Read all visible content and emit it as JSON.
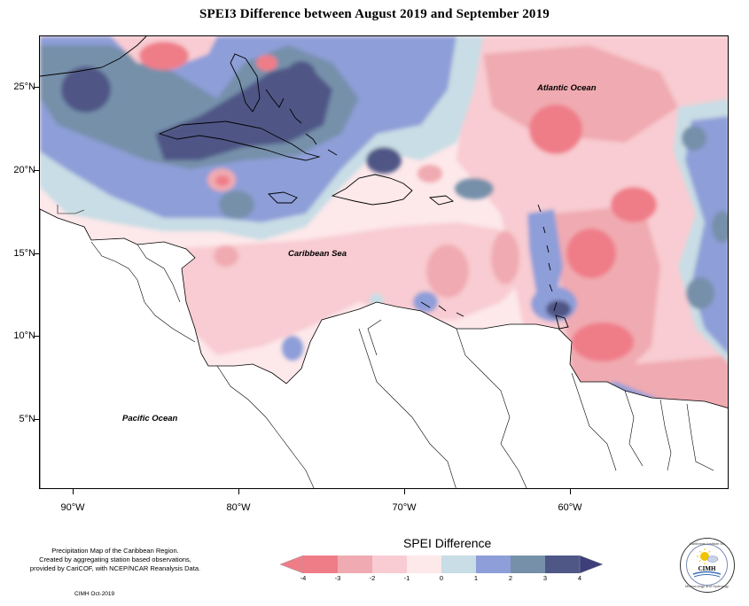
{
  "title": "SPEI3 Difference between August 2019 and September 2019",
  "axes": {
    "lat_labels": [
      "25°N",
      "20°N",
      "15°N",
      "10°N",
      "5°N"
    ],
    "lon_labels": [
      "90°W",
      "80°W",
      "70°W",
      "60°W"
    ]
  },
  "map_labels": {
    "atlantic": "Atlantic Ocean",
    "caribbean": "Caribbean Sea",
    "pacific": "Pacific Ocean"
  },
  "legend": {
    "title": "SPEI Difference",
    "ticks": [
      "-4",
      "-3",
      "-2",
      "-1",
      "0",
      "1",
      "2",
      "3",
      "4"
    ],
    "colors": [
      "#ef7d88",
      "#f0aab1",
      "#f8ccd2",
      "#fde8ea",
      "#c8dde5",
      "#8e9ed8",
      "#7690aa",
      "#4f5786"
    ]
  },
  "footer": {
    "note_line1": "Precipitation Map of the Caribbean Region.",
    "note_line2": "Created by aggregating station based observations,",
    "note_line3": "provided by CariCOF, with NCEP/NCAR Reanalysis Data.",
    "credit": "CIMH Oct-2019"
  },
  "logo": {
    "text": "CIMH",
    "ring_top": "Caribbean Institute for",
    "ring_bottom": "Meteorology and Hydrology"
  }
}
